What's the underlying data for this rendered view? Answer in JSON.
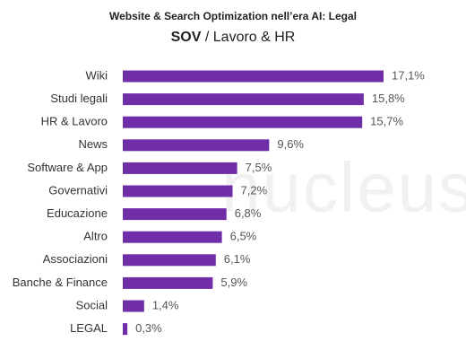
{
  "chart_data": {
    "type": "bar",
    "orientation": "horizontal",
    "title": "Website & Search Optimization nell’era AI: Legal",
    "subtitle_bold": "SOV",
    "subtitle": "/ Lavoro & HR",
    "watermark": "nucleus",
    "color": "#6f2da8",
    "categories": [
      "Wiki",
      "Studi legali",
      "HR & Lavoro",
      "News",
      "Software & App",
      "Governativi",
      "Educazione",
      "Altro",
      "Associazioni",
      "Banche & Finance",
      "Social",
      "LEGAL"
    ],
    "values": [
      17.1,
      15.8,
      15.7,
      9.6,
      7.5,
      7.2,
      6.8,
      6.5,
      6.1,
      5.9,
      1.4,
      0.3
    ],
    "value_labels": [
      "17,1%",
      "15,8%",
      "15,7%",
      "9,6%",
      "7,5%",
      "7,2%",
      "6,8%",
      "6,5%",
      "6,1%",
      "5,9%",
      "1,4%",
      "0,3%"
    ]
  }
}
